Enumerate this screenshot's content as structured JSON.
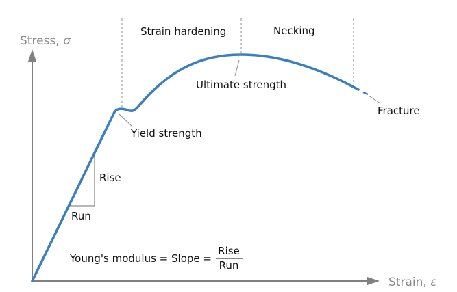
{
  "axes": {
    "y_label": "Stress, ",
    "y_symbol": "σ",
    "x_label": "Strain, ",
    "x_symbol": "ε"
  },
  "regions": {
    "strain_hardening": "Strain hardening",
    "necking": "Necking"
  },
  "points": {
    "yield": "Yield strength",
    "ultimate": "Ultimate strength",
    "fracture": "Fracture"
  },
  "slope": {
    "rise": "Rise",
    "run": "Run"
  },
  "formula": {
    "prefix": "Young's modulus = Slope = ",
    "numerator": "Rise",
    "denominator": "Run"
  },
  "colors": {
    "curve": "#3c7fbd",
    "axis": "#808080",
    "guide": "#8c8c8c"
  }
}
